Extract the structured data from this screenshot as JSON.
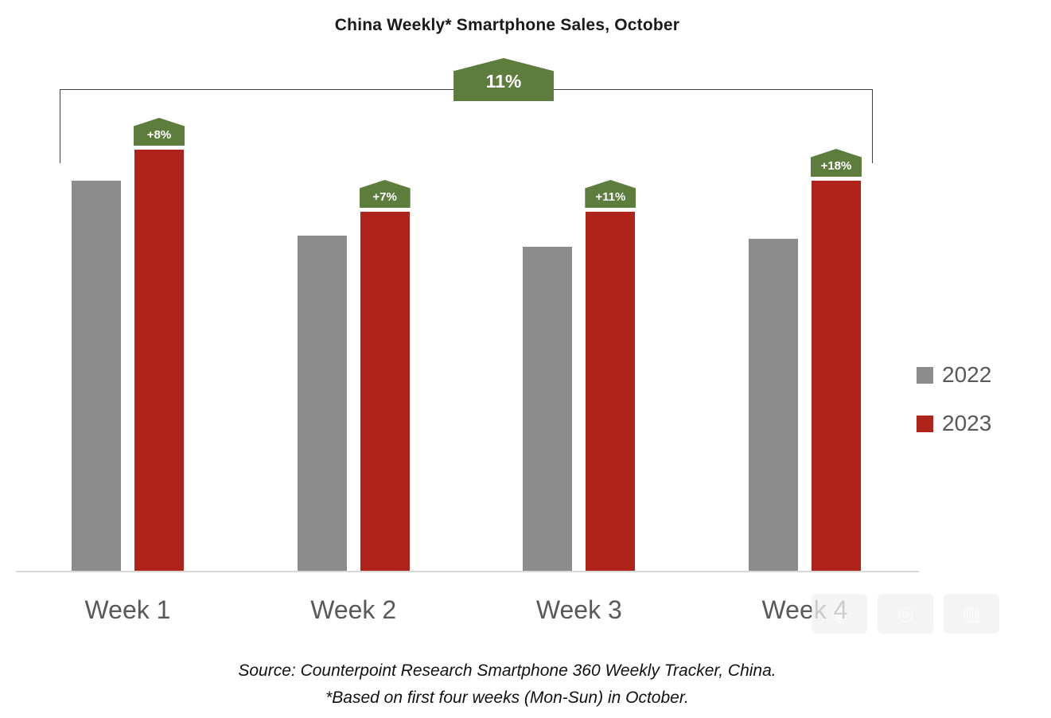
{
  "chart_data": {
    "type": "bar",
    "title": "China Weekly* Smartphone Sales, October",
    "categories": [
      "Week 1",
      "Week 2",
      "Week 3",
      "Week 4"
    ],
    "series": [
      {
        "name": "2022",
        "color": "#8c8c8c",
        "values": [
          100,
          86,
          83,
          85
        ]
      },
      {
        "name": "2023",
        "color": "#b0231a",
        "values": [
          108,
          92,
          92,
          100
        ]
      }
    ],
    "value_note": "relative index estimated from bar heights; no y-axis shown (2022 Week 1 = 100)",
    "growth_badges": [
      "+8%",
      "+7%",
      "+11%",
      "+18%"
    ],
    "overall_growth_badge": "11%",
    "ylim": [
      0,
      115
    ],
    "grid": false,
    "legend_position": "right"
  },
  "footer": {
    "source_line": "Source:  Counterpoint Research Smartphone 360 Weekly Tracker, China.",
    "note_line": "*Based on first four weeks (Mon-Sun) in October."
  },
  "colors": {
    "badge_green": "#5d7d3d",
    "bar_gray": "#8c8c8c",
    "bar_red": "#b0231a",
    "axis_line": "#d9d9d9",
    "label_gray": "#595959",
    "bracket": "#404040"
  }
}
